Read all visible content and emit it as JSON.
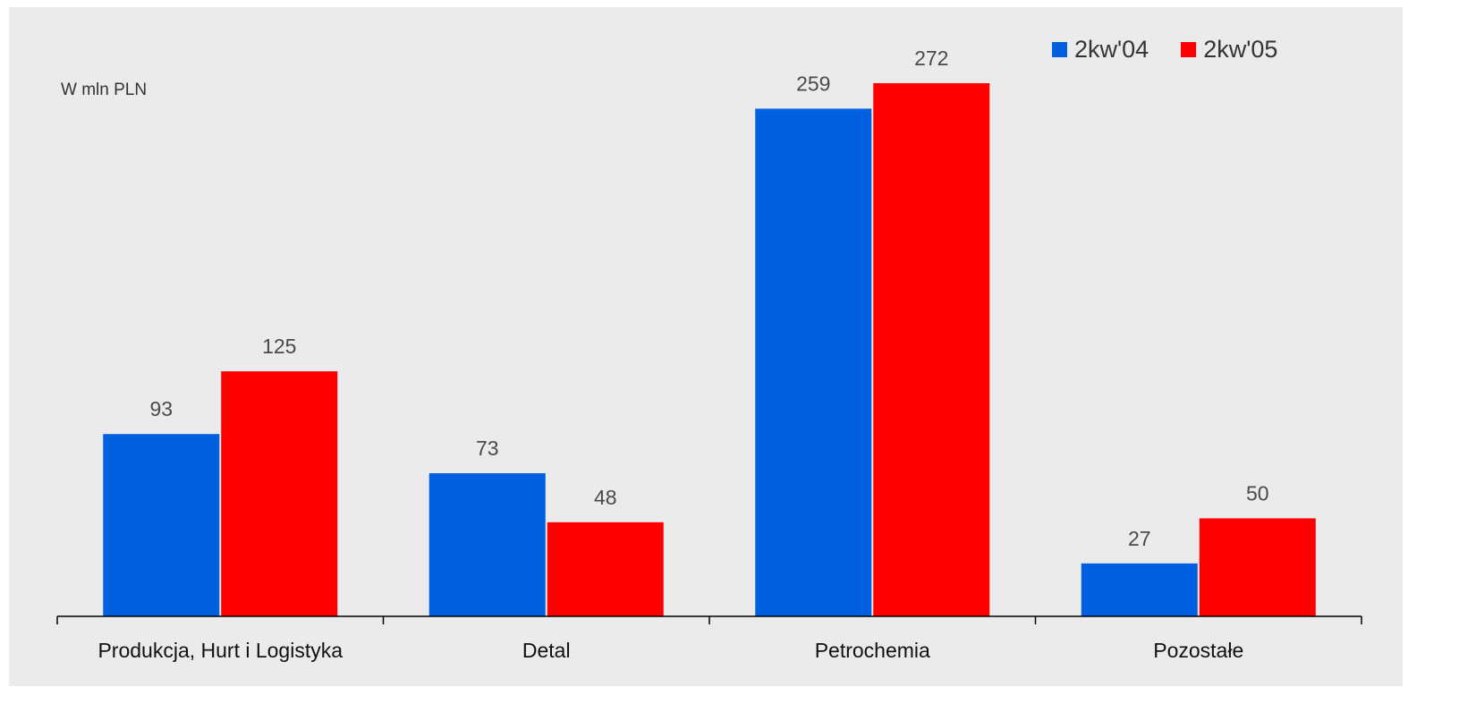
{
  "chart_data": {
    "type": "bar",
    "categories": [
      "Produkcja, Hurt i Logistyka",
      "Detal",
      "Petrochemia",
      "Pozostałe"
    ],
    "series": [
      {
        "name": "2kw'04",
        "values": [
          93,
          73,
          259,
          27
        ],
        "color": "#0060e0"
      },
      {
        "name": "2kw'05",
        "values": [
          125,
          48,
          272,
          50
        ],
        "color": "#ff0000"
      }
    ],
    "ylabel": "W mln PLN",
    "ylim": [
      0,
      300
    ],
    "grid": false,
    "legend_position": "top-right"
  }
}
